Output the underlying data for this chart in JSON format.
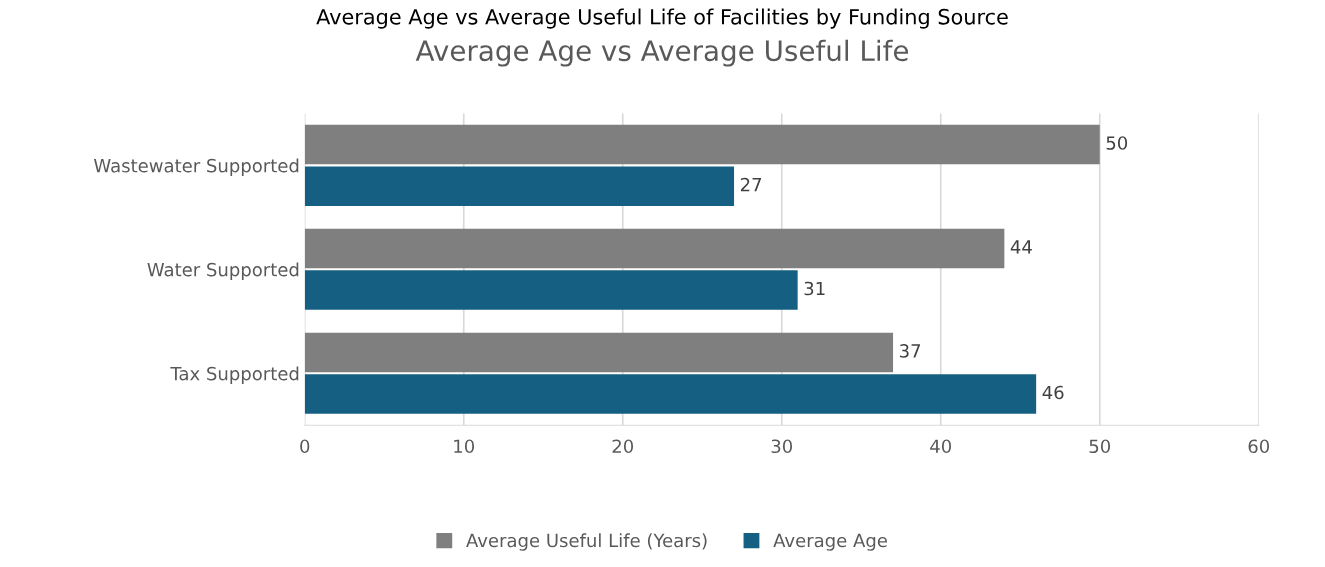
{
  "chart_data": {
    "type": "bar",
    "orientation": "horizontal",
    "title": "Average Age vs Average Useful Life of Facilities by Funding Source",
    "subtitle": "Average Age vs Average Useful Life",
    "categories": [
      "Wastewater Supported",
      "Water Supported",
      "Tax Supported"
    ],
    "series": [
      {
        "name": "Average Useful Life (Years)",
        "color": "#7f7f7f",
        "values": [
          50,
          44,
          37
        ]
      },
      {
        "name": "Average Age",
        "color": "#156082",
        "values": [
          27,
          31,
          46
        ]
      }
    ],
    "xlim": [
      0,
      60
    ],
    "xticks": [
      0,
      10,
      20,
      30,
      40,
      50,
      60
    ],
    "grid": "x",
    "legend": "bottom",
    "data_labels": true
  }
}
